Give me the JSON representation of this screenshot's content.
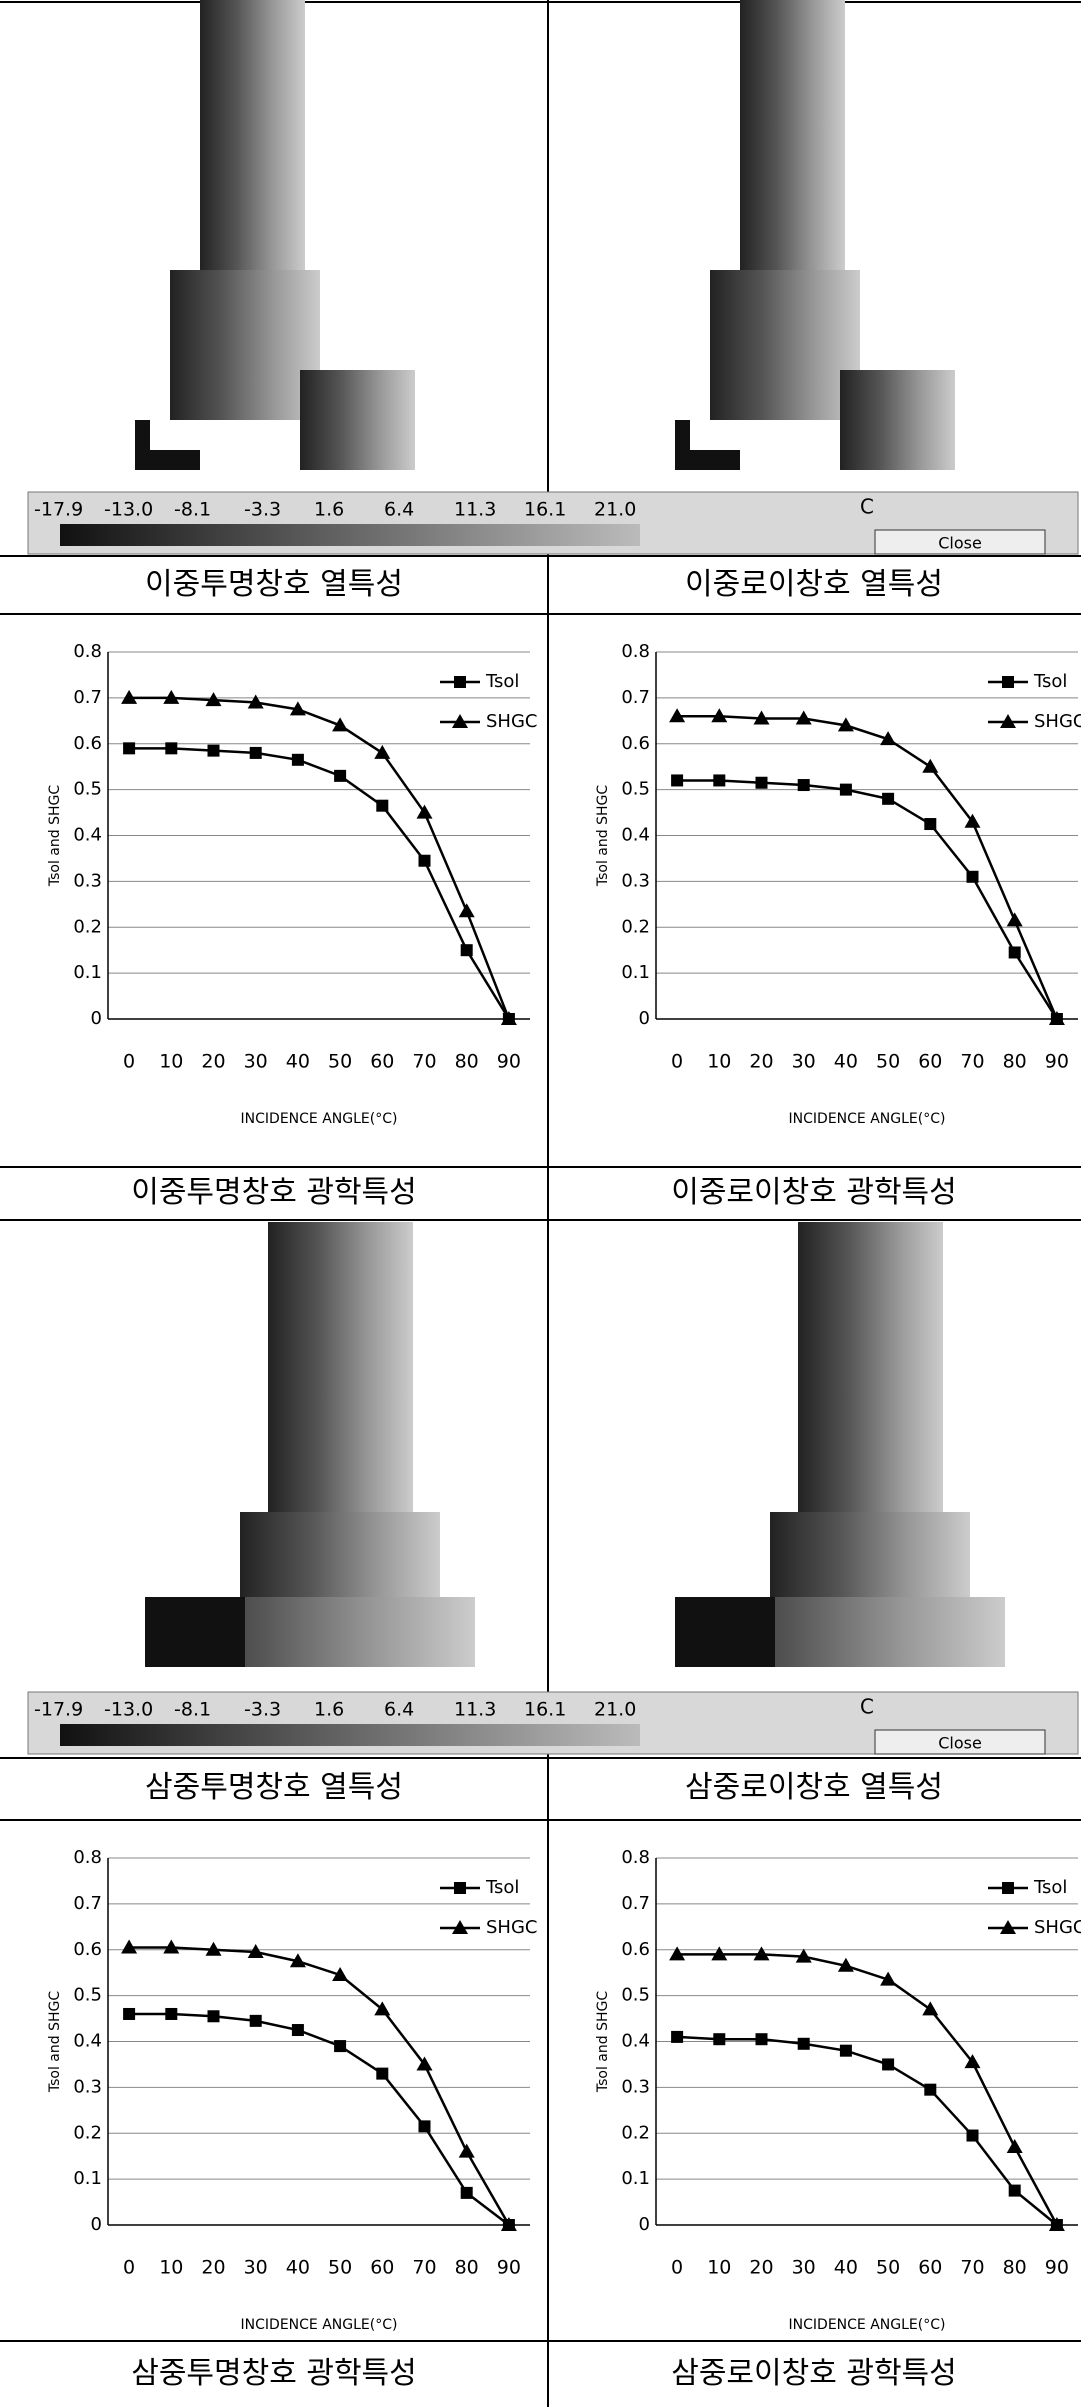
{
  "color_scale": {
    "labels": [
      "-17.9",
      "-13.0",
      "-8.1",
      "-3.3",
      "1.6",
      "6.4",
      "11.3",
      "16.1",
      "21.0"
    ],
    "unit": "C",
    "button": "Close"
  },
  "captions": [
    "이중투명창호 열특성",
    "이중로이창호 열특성",
    "이중투명창호 광학특성",
    "이중로이창호 광학특성",
    "삼중투명창호 열특성",
    "삼중로이창호 열특성",
    "삼중투명창호 광학특성",
    "삼중로이창호 광학특성"
  ],
  "chart_data": [
    {
      "type": "line",
      "y_label": "Tsol and SHGC",
      "x_label": "INCIDENCE ANGLE(°C)",
      "categories": [
        "0",
        "10",
        "20",
        "30",
        "40",
        "50",
        "60",
        "70",
        "80",
        "90"
      ],
      "ylim": [
        0,
        0.8
      ],
      "yticks": [
        0,
        0.1,
        0.2,
        0.3,
        0.4,
        0.5,
        0.6,
        0.7,
        0.8
      ],
      "grid": true,
      "series": [
        {
          "name": "Tsol",
          "color": "#000000",
          "marker": "square",
          "values": [
            0.59,
            0.59,
            0.585,
            0.58,
            0.565,
            0.53,
            0.465,
            0.345,
            0.15,
            0
          ]
        },
        {
          "name": "SHGC",
          "color": "#000000",
          "marker": "triangle",
          "values": [
            0.7,
            0.7,
            0.695,
            0.69,
            0.675,
            0.64,
            0.58,
            0.45,
            0.235,
            0
          ]
        }
      ]
    },
    {
      "type": "line",
      "y_label": "Tsol and SHGC",
      "x_label": "INCIDENCE ANGLE(°C)",
      "categories": [
        "0",
        "10",
        "20",
        "30",
        "40",
        "50",
        "60",
        "70",
        "80",
        "90"
      ],
      "ylim": [
        0,
        0.8
      ],
      "yticks": [
        0,
        0.1,
        0.2,
        0.3,
        0.4,
        0.5,
        0.6,
        0.7,
        0.8
      ],
      "grid": true,
      "series": [
        {
          "name": "Tsol",
          "color": "#000000",
          "marker": "square",
          "values": [
            0.52,
            0.52,
            0.515,
            0.51,
            0.5,
            0.48,
            0.425,
            0.31,
            0.145,
            0
          ]
        },
        {
          "name": "SHGC",
          "color": "#000000",
          "marker": "triangle",
          "values": [
            0.66,
            0.66,
            0.655,
            0.655,
            0.64,
            0.61,
            0.55,
            0.43,
            0.215,
            0
          ]
        }
      ]
    },
    {
      "type": "line",
      "y_label": "Tsol and SHGC",
      "x_label": "INCIDENCE ANGLE(°C)",
      "categories": [
        "0",
        "10",
        "20",
        "30",
        "40",
        "50",
        "60",
        "70",
        "80",
        "90"
      ],
      "ylim": [
        0,
        0.8
      ],
      "yticks": [
        0,
        0.1,
        0.2,
        0.3,
        0.4,
        0.5,
        0.6,
        0.7,
        0.8
      ],
      "grid": true,
      "series": [
        {
          "name": "Tsol",
          "color": "#000000",
          "marker": "square",
          "values": [
            0.46,
            0.46,
            0.455,
            0.445,
            0.425,
            0.39,
            0.33,
            0.215,
            0.07,
            0
          ]
        },
        {
          "name": "SHGC",
          "color": "#000000",
          "marker": "triangle",
          "values": [
            0.605,
            0.605,
            0.6,
            0.595,
            0.575,
            0.545,
            0.47,
            0.35,
            0.16,
            0
          ]
        }
      ]
    },
    {
      "type": "line",
      "y_label": "Tsol and SHGC",
      "x_label": "INCIDENCE ANGLE(°C)",
      "categories": [
        "0",
        "10",
        "20",
        "30",
        "40",
        "50",
        "60",
        "70",
        "80",
        "90"
      ],
      "ylim": [
        0,
        0.8
      ],
      "yticks": [
        0,
        0.1,
        0.2,
        0.3,
        0.4,
        0.5,
        0.6,
        0.7,
        0.8
      ],
      "grid": true,
      "series": [
        {
          "name": "Tsol",
          "color": "#000000",
          "marker": "square",
          "values": [
            0.41,
            0.405,
            0.405,
            0.395,
            0.38,
            0.35,
            0.295,
            0.195,
            0.075,
            0
          ]
        },
        {
          "name": "SHGC",
          "color": "#000000",
          "marker": "triangle",
          "values": [
            0.59,
            0.59,
            0.59,
            0.585,
            0.565,
            0.535,
            0.47,
            0.355,
            0.17,
            0
          ]
        }
      ]
    }
  ]
}
